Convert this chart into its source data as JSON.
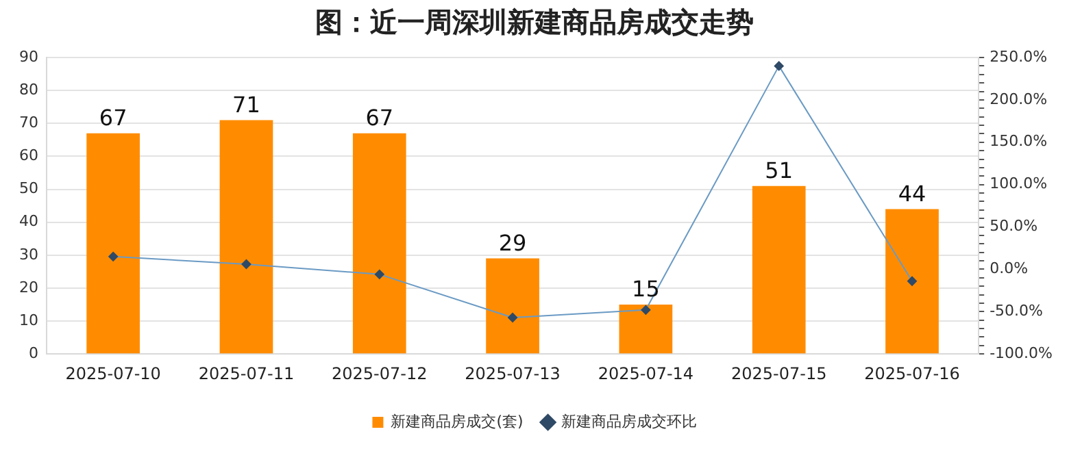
{
  "chart_data": {
    "type": "bar",
    "title": "图：近一周深圳新建商品房成交走势",
    "categories": [
      "2025-07-10",
      "2025-07-11",
      "2025-07-12",
      "2025-07-13",
      "2025-07-14",
      "2025-07-15",
      "2025-07-16"
    ],
    "series": [
      {
        "name": "新建商品房成交(套)",
        "color": "#ff8c00",
        "values": [
          67,
          71,
          67,
          29,
          15,
          51,
          44
        ],
        "value_labels": [
          "67",
          "71",
          "67",
          "29",
          "15",
          "51",
          "44"
        ]
      },
      {
        "name": "新建商品房成交环比",
        "type": "line",
        "axis": "y2",
        "color": "#6a9ac4",
        "marker": "diamond",
        "values": [
          15,
          6,
          -6,
          -57,
          -48,
          240,
          -14
        ]
      }
    ],
    "ylim": [
      0,
      90
    ],
    "yticks": [
      0,
      10,
      20,
      30,
      40,
      50,
      60,
      70,
      80,
      90
    ],
    "y2lim": [
      -100,
      250
    ],
    "y2ticks": [
      {
        "value": -100,
        "label": "-100.0%"
      },
      {
        "value": -90,
        "label": null
      },
      {
        "value": -80,
        "label": null
      },
      {
        "value": -70,
        "label": null
      },
      {
        "value": -60,
        "label": null
      },
      {
        "value": -50,
        "label": "-50.0%"
      },
      {
        "value": -40,
        "label": null
      },
      {
        "value": -30,
        "label": null
      },
      {
        "value": -20,
        "label": null
      },
      {
        "value": -10,
        "label": null
      },
      {
        "value": 0,
        "label": "0.0%"
      },
      {
        "value": 10,
        "label": null
      },
      {
        "value": 20,
        "label": null
      },
      {
        "value": 30,
        "label": null
      },
      {
        "value": 40,
        "label": null
      },
      {
        "value": 50,
        "label": "50.0%"
      },
      {
        "value": 60,
        "label": null
      },
      {
        "value": 70,
        "label": null
      },
      {
        "value": 80,
        "label": null
      },
      {
        "value": 90,
        "label": null
      },
      {
        "value": 100,
        "label": "100.0%"
      },
      {
        "value": 110,
        "label": null
      },
      {
        "value": 120,
        "label": null
      },
      {
        "value": 130,
        "label": null
      },
      {
        "value": 140,
        "label": null
      },
      {
        "value": 150,
        "label": "150.0%"
      },
      {
        "value": 160,
        "label": null
      },
      {
        "value": 170,
        "label": null
      },
      {
        "value": 180,
        "label": null
      },
      {
        "value": 190,
        "label": null
      },
      {
        "value": 200,
        "label": "200.0%"
      },
      {
        "value": 210,
        "label": null
      },
      {
        "value": 220,
        "label": null
      },
      {
        "value": 230,
        "label": null
      },
      {
        "value": 240,
        "label": null
      },
      {
        "value": 250,
        "label": "250.0%"
      }
    ],
    "grid": "y",
    "legend": "bottom"
  }
}
